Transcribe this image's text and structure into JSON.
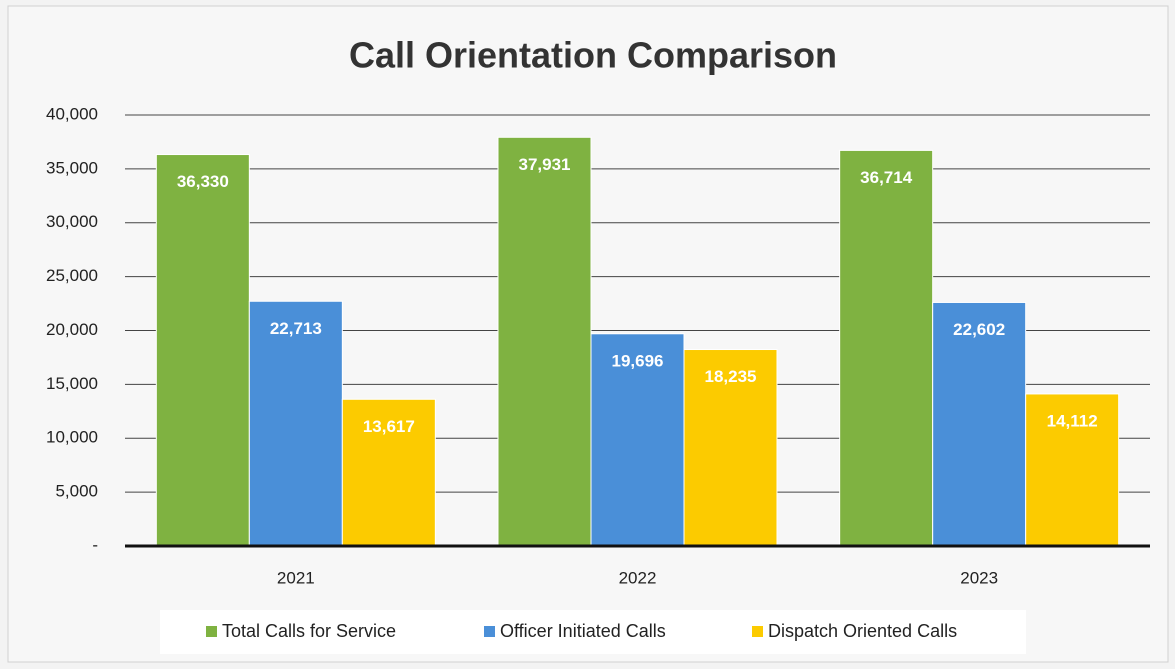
{
  "chart_data": {
    "type": "bar",
    "title": "Call Orientation Comparison",
    "categories": [
      "2021",
      "2022",
      "2023"
    ],
    "series": [
      {
        "name": "Total Calls for Service",
        "color": "#7fb241",
        "values": [
          36330,
          37931,
          36714
        ],
        "value_labels": [
          "36,330",
          "37,931",
          "36,714"
        ]
      },
      {
        "name": "Officer Initiated Calls",
        "color": "#4a8fd8",
        "values": [
          22713,
          19696,
          22602
        ],
        "value_labels": [
          "22,713",
          "19,696",
          "22,602"
        ]
      },
      {
        "name": "Dispatch Oriented Calls",
        "color": "#fccb00",
        "values": [
          13617,
          18235,
          14112
        ],
        "value_labels": [
          "13,617",
          "18,235",
          "14,112"
        ]
      }
    ],
    "ylim": [
      0,
      40000
    ],
    "yticks": [
      {
        "value": 0,
        "label": "-"
      },
      {
        "value": 5000,
        "label": "5,000"
      },
      {
        "value": 10000,
        "label": "10,000"
      },
      {
        "value": 15000,
        "label": "15,000"
      },
      {
        "value": 20000,
        "label": "20,000"
      },
      {
        "value": 25000,
        "label": "25,000"
      },
      {
        "value": 30000,
        "label": "30,000"
      },
      {
        "value": 35000,
        "label": "35,000"
      },
      {
        "value": 40000,
        "label": "40,000"
      }
    ],
    "grid": true,
    "legend": "bottom"
  }
}
